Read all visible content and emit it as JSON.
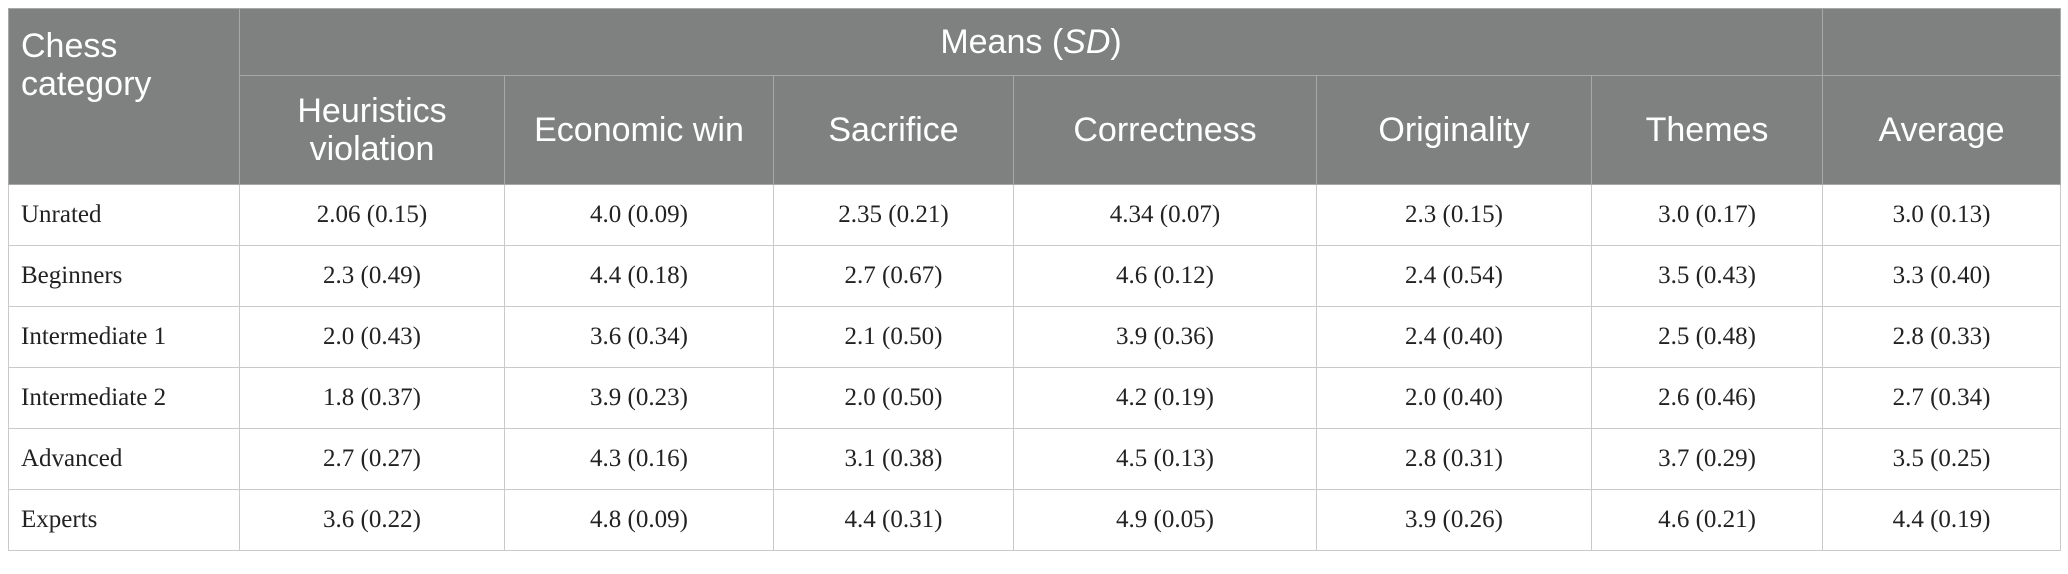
{
  "header": {
    "category_label": "Chess category",
    "means_label": "Means",
    "means_sd_open": "(",
    "means_sd": "SD",
    "means_sd_close": ")",
    "columns": [
      "Heuristics violation",
      "Economic win",
      "Sacrifice",
      "Correctness",
      "Originality",
      "Themes",
      "Average"
    ]
  },
  "rows": [
    {
      "category": "Unrated",
      "values": [
        "2.06 (0.15)",
        "4.0 (0.09)",
        "2.35 (0.21)",
        "4.34 (0.07)",
        "2.3 (0.15)",
        "3.0 (0.17)",
        "3.0 (0.13)"
      ]
    },
    {
      "category": "Beginners",
      "values": [
        "2.3 (0.49)",
        "4.4 (0.18)",
        "2.7 (0.67)",
        "4.6 (0.12)",
        "2.4 (0.54)",
        "3.5 (0.43)",
        "3.3 (0.40)"
      ]
    },
    {
      "category": "Intermediate 1",
      "values": [
        "2.0 (0.43)",
        "3.6 (0.34)",
        "2.1 (0.50)",
        "3.9 (0.36)",
        "2.4 (0.40)",
        "2.5 (0.48)",
        "2.8 (0.33)"
      ]
    },
    {
      "category": "Intermediate 2",
      "values": [
        "1.8 (0.37)",
        "3.9 (0.23)",
        "2.0 (0.50)",
        "4.2 (0.19)",
        "2.0 (0.40)",
        "2.6 (0.46)",
        "2.7 (0.34)"
      ]
    },
    {
      "category": "Advanced",
      "values": [
        "2.7 (0.27)",
        "4.3 (0.16)",
        "3.1 (0.38)",
        "4.5 (0.13)",
        "2.8 (0.31)",
        "3.7 (0.29)",
        "3.5 (0.25)"
      ]
    },
    {
      "category": "Experts",
      "values": [
        "3.6 (0.22)",
        "4.8 (0.09)",
        "4.4 (0.31)",
        "4.9 (0.05)",
        "3.9 (0.26)",
        "4.6 (0.21)",
        "4.4 (0.19)"
      ]
    }
  ]
}
